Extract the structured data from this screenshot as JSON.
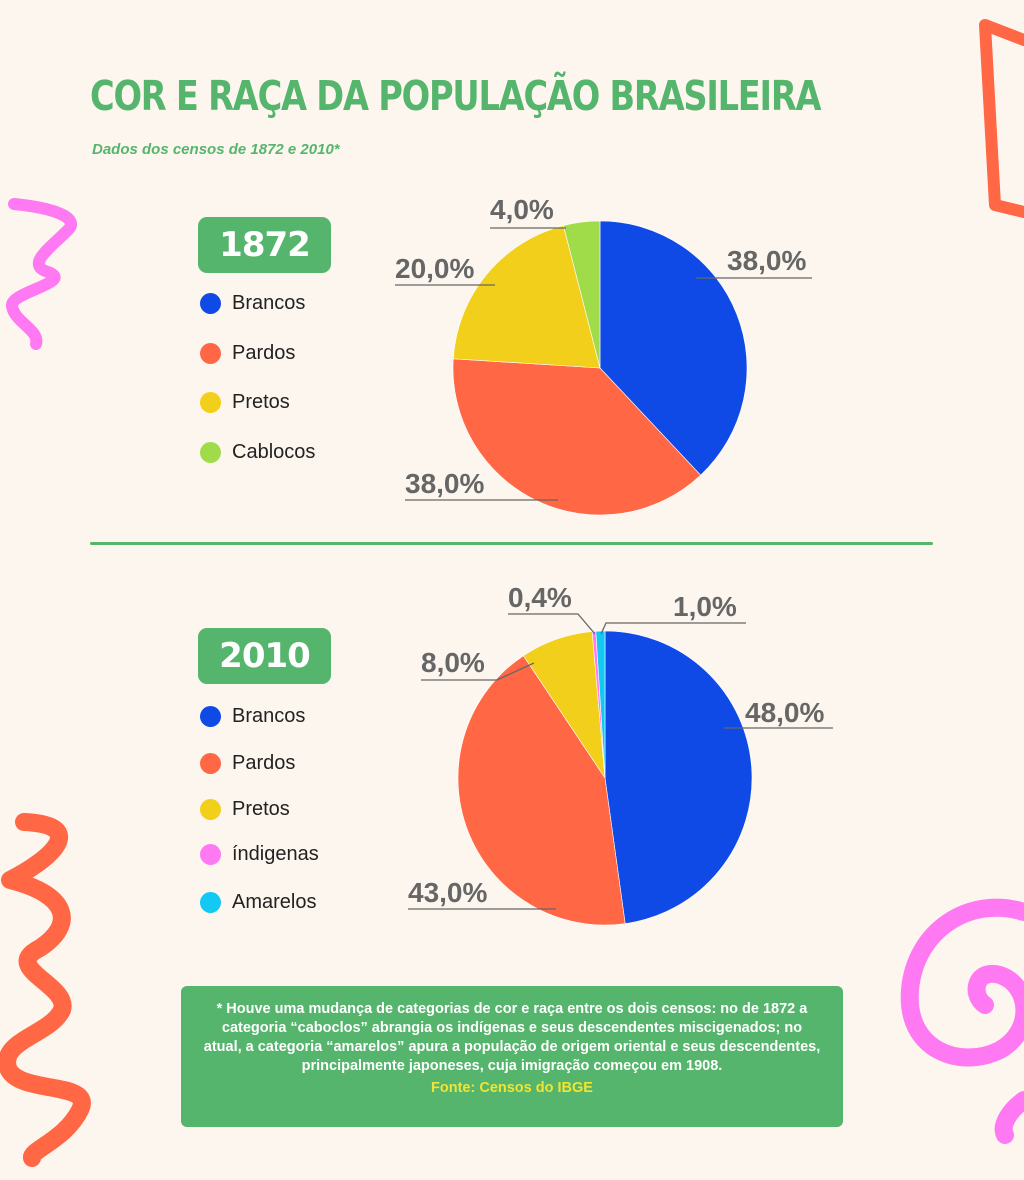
{
  "title": "COR E RAÇA DA POPULAÇÃO BRASILEIRA",
  "subtitle": "Dados dos censos de 1872 e 2010*",
  "colors": {
    "accent_green": "#55b56c",
    "background": "#fdf6ef",
    "brancos": "#0f4ae6",
    "pardos": "#ff6745",
    "pretos": "#f2cf1a",
    "caboclos": "#a0dc4a",
    "indigenas": "#ff79f2",
    "amarelos": "#13c9f3",
    "decor_orange": "#ff6745",
    "decor_pink": "#ff79f2",
    "label_text": "#666666"
  },
  "chart_data": [
    {
      "type": "pie",
      "year_label": "1872",
      "legend": [
        "Brancos",
        "Pardos",
        "Pretos",
        "Cablocos"
      ],
      "series": [
        {
          "name": "Brancos",
          "value": 38.0,
          "label": "38,0%",
          "color": "#0f4ae6"
        },
        {
          "name": "Pardos",
          "value": 38.0,
          "label": "38,0%",
          "color": "#ff6745"
        },
        {
          "name": "Pretos",
          "value": 20.0,
          "label": "20,0%",
          "color": "#f2cf1a"
        },
        {
          "name": "Cablocos",
          "value": 4.0,
          "label": "4,0%",
          "color": "#a0dc4a"
        }
      ]
    },
    {
      "type": "pie",
      "year_label": "2010",
      "legend": [
        "Brancos",
        "Pardos",
        "Pretos",
        "índigenas",
        "Amarelos"
      ],
      "series": [
        {
          "name": "Brancos",
          "value": 48.0,
          "label": "48,0%",
          "color": "#0f4ae6"
        },
        {
          "name": "Pardos",
          "value": 43.0,
          "label": "43,0%",
          "color": "#ff6745"
        },
        {
          "name": "Pretos",
          "value": 8.0,
          "label": "8,0%",
          "color": "#f2cf1a"
        },
        {
          "name": "índigenas",
          "value": 0.4,
          "label": "0,4%",
          "color": "#ff79f2"
        },
        {
          "name": "Amarelos",
          "value": 1.0,
          "label": "1,0%",
          "color": "#13c9f3"
        }
      ]
    }
  ],
  "note": {
    "text": "* Houve uma mudança de categorias de cor e raça entre os dois censos: no de 1872 a categoria “caboclos” abrangia os indígenas e seus descendentes miscigenados; no atual, a categoria “amarelos” apura a população de origem oriental e seus descendentes, principalmente japoneses, cuja imigração começou em 1908.",
    "source": "Fonte: Censos do IBGE"
  }
}
